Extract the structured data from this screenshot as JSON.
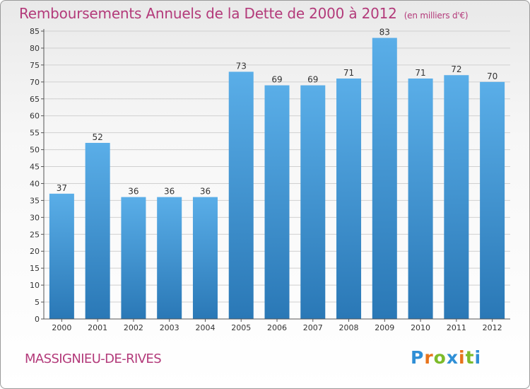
{
  "title": "Remboursements Annuels de la Dette de 2000 à 2012",
  "unit_note": "(en milliers d'€)",
  "location": "MASSIGNIEU-DE-RIVES",
  "logo": {
    "text": "Proxiti",
    "letters": [
      {
        "ch": "P",
        "color": "#2f8fd6"
      },
      {
        "ch": "r",
        "color": "#e8731a"
      },
      {
        "ch": "o",
        "color": "#7dbb2a"
      },
      {
        "ch": "x",
        "color": "#2f8fd6"
      },
      {
        "ch": "i",
        "color": "#e8731a"
      },
      {
        "ch": "t",
        "color": "#7dbb2a"
      },
      {
        "ch": "i",
        "color": "#2f8fd6"
      }
    ]
  },
  "colors": {
    "title": "#b33a7a",
    "bar_top": "#5aaee8",
    "bar_bottom": "#2a78b6",
    "grid": "#d0d0d0"
  },
  "chart_data": {
    "type": "bar",
    "categories": [
      "2000",
      "2001",
      "2002",
      "2003",
      "2004",
      "2005",
      "2006",
      "2007",
      "2008",
      "2009",
      "2010",
      "2011",
      "2012"
    ],
    "values": [
      37,
      52,
      36,
      36,
      36,
      73,
      69,
      69,
      71,
      83,
      71,
      72,
      70
    ],
    "ylim": [
      0,
      85
    ],
    "yticks": [
      0,
      5,
      10,
      15,
      20,
      25,
      30,
      35,
      40,
      45,
      50,
      55,
      60,
      65,
      70,
      75,
      80,
      85
    ],
    "grid": true,
    "data_labels": true
  }
}
